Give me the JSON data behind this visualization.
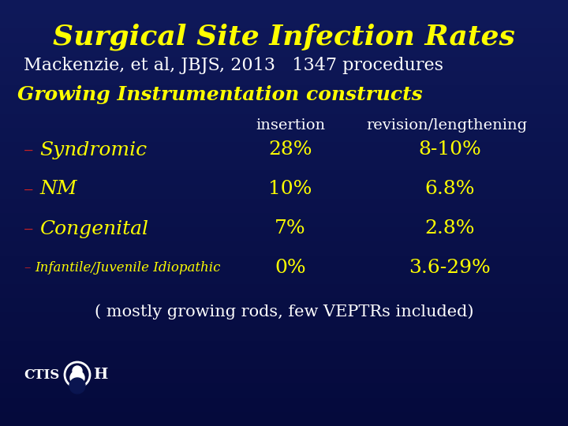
{
  "title": "Surgical Site Infection Rates",
  "subtitle": "Mackenzie, et al, JBJS, 2013   1347 procedures",
  "subtitle2": "Growing Instrumentation constructs",
  "col_header1": "insertion",
  "col_header2": "revision/lengthening",
  "rows": [
    {
      "label_dash": "–",
      "label_text": "Syndromic",
      "label_small": false,
      "insertion": "28%",
      "revision": "8-10%"
    },
    {
      "label_dash": "–",
      "label_text": "NM",
      "label_small": false,
      "insertion": "10%",
      "revision": "6.8%"
    },
    {
      "label_dash": "–",
      "label_text": "Congenital",
      "label_small": false,
      "insertion": "7%",
      "revision": "2.8%"
    },
    {
      "label_dash": "–",
      "label_text": "Infantile/Juvenile Idiopathic",
      "label_small": true,
      "insertion": "0%",
      "revision": "3.6-29%"
    }
  ],
  "footer": "( mostly growing rods, few VEPTRs included)",
  "ctis_label": "CTIS",
  "bg_color": "#0a1550",
  "title_color": "#ffff00",
  "subtitle_color": "#ffffff",
  "subtitle2_color": "#ffff00",
  "header_color": "#ffffff",
  "label_color": "#ffff00",
  "dash_color": "#cc2222",
  "data_color": "#ffff00",
  "footer_color": "#ffffff",
  "ctis_color": "#ffffff"
}
